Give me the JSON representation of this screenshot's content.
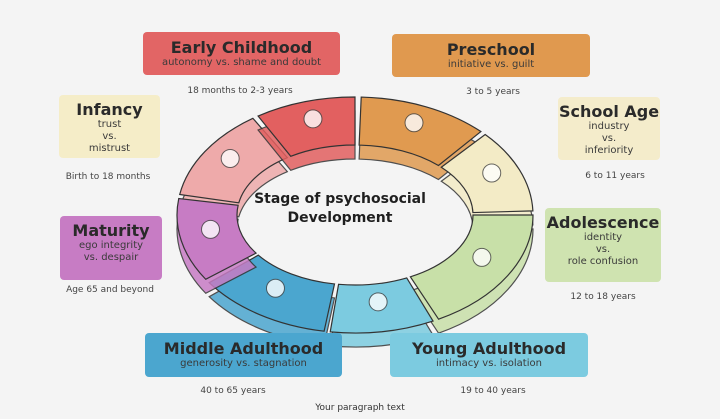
{
  "title": [
    "Stage of psychosocial",
    "Development"
  ],
  "footer": "Your paragraph text",
  "stages": [
    {
      "name": "Infancy",
      "conflict": [
        "trust",
        "vs.",
        "mistrust"
      ],
      "age": "Birth to 18 months",
      "color": "#f5edc8",
      "ring_color": "#eeaaaa",
      "icon": "baby-bottle-icon"
    },
    {
      "name": "Early Childhood",
      "conflict": [
        "autonomy vs. shame and doubt"
      ],
      "age": "18 months to 2-3 years",
      "color": "#e26565",
      "ring_color": "#e26060",
      "icon": "toilet-icon"
    },
    {
      "name": "Preschool",
      "conflict": [
        "initiative vs. guilt"
      ],
      "age": "3 to 5 years",
      "color": "#e0994f",
      "ring_color": "#e09a50",
      "icon": "magnifying-glass-icon"
    },
    {
      "name": "School Age",
      "conflict": [
        "industry",
        "vs.",
        "inferiority"
      ],
      "age": "6 to 11 years",
      "color": "#f4eccb",
      "ring_color": "#f3ebc6",
      "icon": "apple-pencil-icon"
    },
    {
      "name": "Adolescence",
      "conflict": [
        "identity",
        "vs.",
        "role confusion"
      ],
      "age": "12 to 18 years",
      "color": "#cfe3b0",
      "ring_color": "#c8e0a8",
      "icon": "people-icon"
    },
    {
      "name": "Young Adulthood",
      "conflict": [
        "intimacy vs. isolation"
      ],
      "age": "19 to 40 years",
      "color": "#7ccbe0",
      "ring_color": "#7ccbe0",
      "icon": "couple-icon"
    },
    {
      "name": "Middle Adulthood",
      "conflict": [
        "generosity vs. stagnation"
      ],
      "age": "40 to 65 years",
      "color": "#4ba6cf",
      "ring_color": "#4ba6cf",
      "icon": "house-icon"
    },
    {
      "name": "Maturity",
      "conflict": [
        "ego integrity",
        "vs. despair"
      ],
      "age": "Age 65 and beyond",
      "color": "#c77cc4",
      "ring_color": "#c77cc4",
      "icon": "mirror-icon"
    }
  ]
}
